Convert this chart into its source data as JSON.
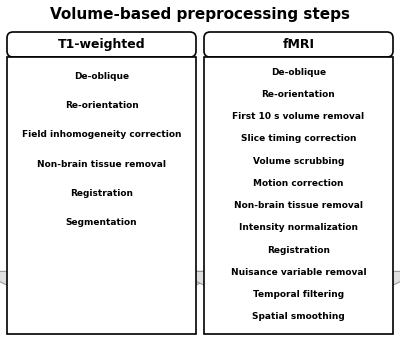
{
  "title": "Volume-based preprocessing steps",
  "title_fontsize": 11,
  "col1_header": "T1-weighted",
  "col2_header": "fMRI",
  "col1_items": [
    "De-oblique",
    "Re-orientation",
    "Field inhomogeneity correction",
    "Non-brain tissue removal",
    "Registration",
    "Segmentation"
  ],
  "col2_items": [
    "De-oblique",
    "Re-orientation",
    "First 10 s volume removal",
    "Slice timing correction",
    "Volume scrubbing",
    "Motion correction",
    "Non-brain tissue removal",
    "Intensity normalization",
    "Registration",
    "Nuisance variable removal",
    "Temporal filtering",
    "Spatial smoothing"
  ],
  "bg_color": "#ffffff",
  "border_color": "#000000",
  "text_color": "#000000",
  "arrow_color": "#e0e0e0",
  "arrow_edge_color": "#999999",
  "item_fontsize": 6.5,
  "header_fontsize": 9.0
}
